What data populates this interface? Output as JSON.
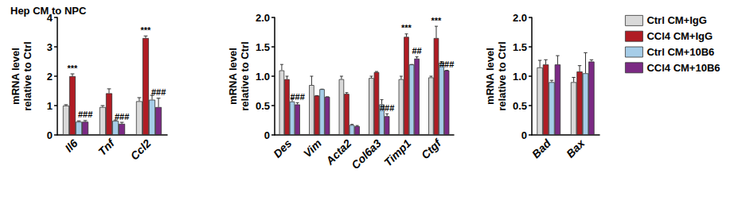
{
  "chart_data": [
    {
      "type": "bar",
      "title": "Hep CM to NPC",
      "ylabel": "mRNA level\nrelative to Ctrl",
      "categories": [
        "Il6",
        "Tnf",
        "Ccl2"
      ],
      "series": [
        {
          "name": "Ctrl CM+IgG",
          "color": "#d9d9d9",
          "values": [
            1.0,
            0.95,
            1.15
          ],
          "errors": [
            0.03,
            0.05,
            0.12
          ]
        },
        {
          "name": "CCl4 CM+IgG",
          "color": "#b01c24",
          "values": [
            2.0,
            1.42,
            3.3
          ],
          "errors": [
            0.08,
            0.15,
            0.07
          ]
        },
        {
          "name": "Ctrl CM+10B6",
          "color": "#a6cde8",
          "values": [
            0.45,
            0.48,
            1.2
          ],
          "errors": [
            0.03,
            0.03,
            0.15
          ]
        },
        {
          "name": "CCl4 CM+10B6",
          "color": "#7b2a84",
          "values": [
            0.45,
            0.38,
            0.95
          ],
          "errors": [
            0.04,
            0.05,
            0.3
          ]
        }
      ],
      "annotations": [
        {
          "category": "Il6",
          "series": "CCl4 CM+IgG",
          "text": "***"
        },
        {
          "category": "Il6",
          "series": "CCl4 CM+10B6",
          "text": "###"
        },
        {
          "category": "Tnf",
          "series": "CCl4 CM+10B6",
          "text": "###"
        },
        {
          "category": "Ccl2",
          "series": "CCl4 CM+IgG",
          "text": "***"
        },
        {
          "category": "Ccl2",
          "series": "CCl4 CM+10B6",
          "text": "###"
        }
      ],
      "ylim": [
        0,
        4
      ],
      "yticks": [
        0,
        1,
        2,
        3,
        4
      ],
      "grid": false
    },
    {
      "type": "bar",
      "ylabel": "mRNA level\nrelative to Ctrl",
      "categories": [
        "Des",
        "Vim",
        "Acta2",
        "Col6a3",
        "Timp1",
        "Ctgf"
      ],
      "series": [
        {
          "name": "Ctrl CM+IgG",
          "color": "#d9d9d9",
          "values": [
            1.1,
            0.85,
            0.95,
            0.97,
            0.95,
            0.98
          ],
          "errors": [
            0.1,
            0.15,
            0.05,
            0.03,
            0.05,
            0.02
          ]
        },
        {
          "name": "CCl4 CM+IgG",
          "color": "#b01c24",
          "values": [
            0.95,
            0.67,
            0.7,
            1.07,
            1.67,
            1.65
          ],
          "errors": [
            0.05,
            0.0,
            0.02,
            0.01,
            0.05,
            0.2
          ]
        },
        {
          "name": "Ctrl CM+10B6",
          "color": "#a6cde8",
          "values": [
            0.57,
            0.78,
            0.17,
            0.52,
            1.2,
            1.23
          ],
          "errors": [
            0.05,
            0.0,
            0.01,
            0.08,
            0.0,
            0.02
          ]
        },
        {
          "name": "CCl4 CM+10B6",
          "color": "#7b2a84",
          "values": [
            0.52,
            0.65,
            0.15,
            0.32,
            1.3,
            1.1
          ],
          "errors": [
            0.03,
            0.0,
            0.01,
            0.04,
            0.03,
            0.0
          ]
        }
      ],
      "annotations": [
        {
          "category": "Des",
          "series": "CCl4 CM+10B6",
          "text": "###"
        },
        {
          "category": "Col6a3",
          "series": "CCl4 CM+10B6",
          "text": "###"
        },
        {
          "category": "Timp1",
          "series": "CCl4 CM+IgG",
          "text": "***"
        },
        {
          "category": "Timp1",
          "series": "CCl4 CM+10B6",
          "text": "##"
        },
        {
          "category": "Ctgf",
          "series": "CCl4 CM+IgG",
          "text": "***"
        },
        {
          "category": "Ctgf",
          "series": "CCl4 CM+10B6",
          "text": "###"
        }
      ],
      "ylim": [
        0,
        2
      ],
      "yticks": [
        0,
        0.5,
        {
          "value": 1,
          "label": "1.0"
        },
        1.5,
        {
          "value": 2,
          "label": "2.0"
        }
      ],
      "grid": false
    },
    {
      "type": "bar",
      "ylabel": "mRNA level\nrelative to Ctrl",
      "categories": [
        "Bad",
        "Bax"
      ],
      "series": [
        {
          "name": "Ctrl CM+IgG",
          "color": "#d9d9d9",
          "values": [
            1.15,
            0.9
          ],
          "errors": [
            0.12,
            0.08
          ]
        },
        {
          "name": "CCl4 CM+IgG",
          "color": "#b01c24",
          "values": [
            1.2,
            1.08
          ],
          "errors": [
            0.08,
            0.1
          ]
        },
        {
          "name": "Ctrl CM+10B6",
          "color": "#a6cde8",
          "values": [
            0.9,
            1.05
          ],
          "errors": [
            0.03,
            0.35
          ]
        },
        {
          "name": "CCl4 CM+10B6",
          "color": "#7b2a84",
          "values": [
            1.2,
            1.25
          ],
          "errors": [
            0.15,
            0.03
          ]
        }
      ],
      "ylim": [
        0,
        2
      ],
      "yticks": [
        0,
        0.5,
        {
          "value": 1,
          "label": "1.0"
        },
        1.5,
        {
          "value": 2,
          "label": "2.0"
        }
      ],
      "grid": false,
      "legend": "right"
    }
  ]
}
